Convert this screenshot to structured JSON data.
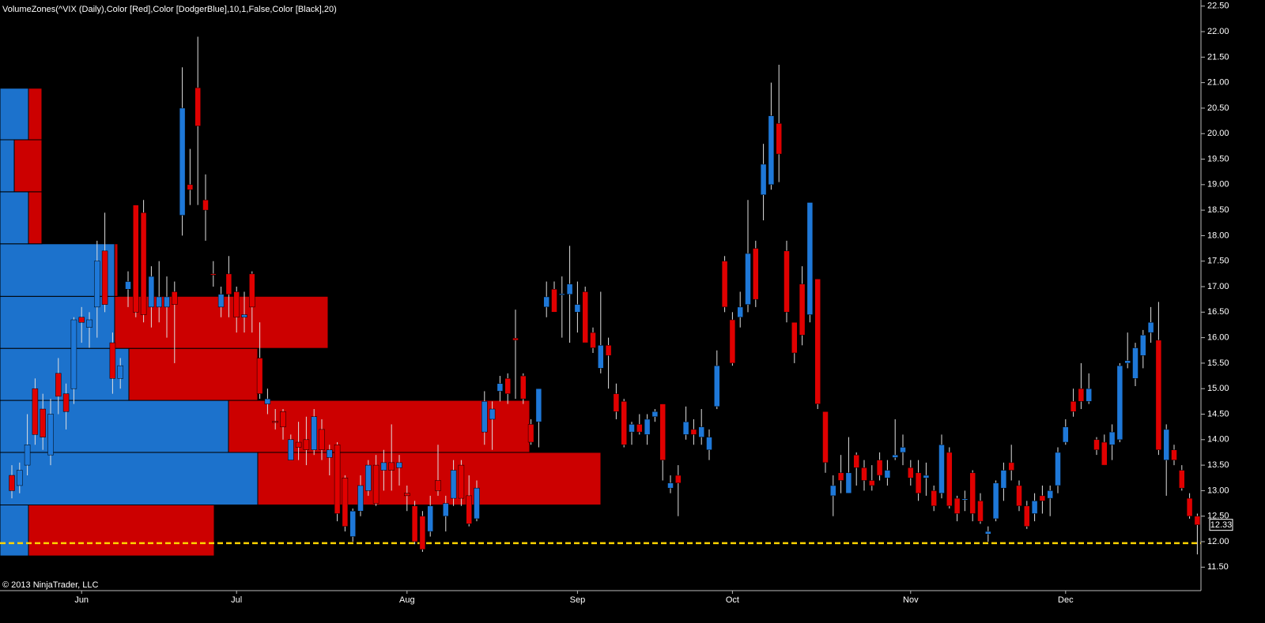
{
  "chart_data": {
    "type": "candlestick",
    "title": "VolumeZones(^VIX (Daily),Color [Red],Color [DodgerBlue],10,1,False,Color [Black],20)",
    "copyright": "© 2013 NinjaTrader, LLC",
    "up_color": "#1e78d8",
    "down_color": "#e00000",
    "wick_color": "#e0e0e0",
    "zone_up_color": "#1c72cc",
    "zone_down_color": "#cc0000",
    "support_line": {
      "value": 11.97,
      "color": "#ffd200"
    },
    "categories": [
      null,
      null,
      null,
      null,
      null,
      null,
      null,
      null,
      null,
      "Jun",
      null,
      null,
      null,
      null,
      null,
      null,
      null,
      null,
      null,
      null,
      null,
      null,
      null,
      null,
      null,
      null,
      null,
      null,
      null,
      "Jul",
      null,
      null,
      null,
      null,
      null,
      null,
      null,
      null,
      null,
      null,
      null,
      null,
      null,
      null,
      null,
      null,
      null,
      null,
      null,
      null,
      null,
      "Aug",
      null,
      null,
      null,
      null,
      null,
      null,
      null,
      null,
      null,
      null,
      null,
      null,
      null,
      null,
      null,
      null,
      null,
      null,
      null,
      null,
      null,
      "Sep",
      null,
      null,
      null,
      null,
      null,
      null,
      null,
      null,
      null,
      null,
      null,
      null,
      null,
      null,
      null,
      null,
      null,
      null,
      null,
      "Oct",
      null,
      null,
      null,
      null,
      null,
      null,
      null,
      null,
      null,
      null,
      null,
      null,
      null,
      null,
      null,
      null,
      null,
      null,
      null,
      null,
      null,
      null,
      "Nov",
      null,
      null,
      null,
      null,
      null,
      null,
      null,
      null,
      null,
      null,
      null,
      null,
      null,
      null,
      null,
      null,
      null,
      null,
      null,
      "Dec",
      null,
      null,
      null,
      null,
      null,
      null,
      null,
      null,
      null,
      null,
      null,
      null,
      null,
      null,
      null,
      null,
      null
    ],
    "ohlc": [
      [
        13.3,
        13.5,
        12.85,
        13.0
      ],
      [
        13.1,
        13.55,
        12.95,
        13.4
      ],
      [
        13.5,
        14.5,
        13.3,
        13.9
      ],
      [
        15.0,
        15.2,
        13.9,
        14.1
      ],
      [
        14.6,
        14.9,
        13.8,
        14.05
      ],
      [
        13.7,
        14.8,
        13.5,
        14.5
      ],
      [
        15.3,
        15.6,
        14.5,
        14.85
      ],
      [
        14.9,
        15.1,
        14.2,
        14.55
      ],
      [
        15.0,
        16.4,
        14.7,
        16.35
      ],
      [
        16.4,
        16.6,
        15.9,
        16.3
      ],
      [
        16.2,
        16.5,
        15.8,
        16.35
      ],
      [
        16.6,
        17.9,
        16.0,
        17.5
      ],
      [
        17.7,
        18.45,
        16.5,
        16.65
      ],
      [
        15.9,
        16.1,
        14.9,
        15.2
      ],
      [
        15.2,
        15.6,
        15.0,
        15.45
      ],
      [
        16.95,
        17.3,
        16.6,
        17.1
      ],
      [
        18.6,
        18.6,
        16.4,
        16.5
      ],
      [
        18.45,
        18.7,
        16.3,
        16.45
      ],
      [
        16.6,
        17.4,
        16.2,
        17.2
      ],
      [
        16.6,
        17.5,
        16.3,
        16.8
      ],
      [
        16.6,
        17.2,
        16.0,
        16.8
      ],
      [
        16.9,
        17.1,
        15.5,
        16.65
      ],
      [
        18.4,
        21.3,
        18.0,
        20.5
      ],
      [
        19.0,
        19.7,
        18.6,
        18.9
      ],
      [
        20.9,
        21.9,
        18.6,
        20.15
      ],
      [
        18.7,
        19.2,
        17.9,
        18.5
      ],
      [
        17.25,
        17.5,
        17.0,
        17.24
      ],
      [
        16.6,
        17.0,
        16.4,
        16.85
      ],
      [
        17.25,
        17.6,
        16.4,
        16.85
      ],
      [
        16.9,
        17.0,
        16.1,
        16.4
      ],
      [
        16.4,
        16.9,
        16.1,
        16.45
      ],
      [
        17.25,
        17.3,
        16.1,
        16.6
      ],
      [
        15.6,
        16.3,
        14.8,
        14.9
      ],
      [
        14.7,
        15.0,
        14.5,
        14.8
      ],
      [
        14.36,
        14.6,
        14.2,
        14.35
      ],
      [
        14.55,
        14.6,
        14.0,
        14.25
      ],
      [
        13.6,
        14.1,
        13.6,
        14.0
      ],
      [
        13.95,
        14.35,
        13.6,
        13.85
      ],
      [
        14.0,
        14.45,
        13.5,
        13.8
      ],
      [
        13.8,
        14.6,
        13.7,
        14.45
      ],
      [
        14.2,
        14.4,
        13.6,
        13.8
      ],
      [
        13.65,
        13.9,
        13.3,
        13.8
      ],
      [
        13.9,
        13.95,
        12.4,
        12.55
      ],
      [
        13.25,
        13.3,
        12.2,
        12.3
      ],
      [
        12.1,
        12.65,
        12.0,
        12.6
      ],
      [
        12.6,
        13.3,
        12.5,
        13.1
      ],
      [
        13.0,
        13.6,
        12.9,
        13.5
      ],
      [
        13.5,
        13.7,
        12.7,
        12.75
      ],
      [
        13.4,
        13.8,
        13.0,
        13.55
      ],
      [
        13.55,
        14.3,
        13.0,
        13.4
      ],
      [
        13.45,
        13.7,
        13.1,
        13.55
      ],
      [
        12.95,
        13.1,
        12.6,
        12.9
      ],
      [
        12.7,
        12.8,
        11.95,
        12.0
      ],
      [
        12.5,
        12.6,
        11.8,
        11.85
      ],
      [
        12.2,
        12.9,
        12.1,
        12.7
      ],
      [
        13.2,
        13.9,
        12.9,
        13.0
      ],
      [
        12.5,
        12.9,
        12.2,
        12.75
      ],
      [
        12.85,
        13.6,
        12.7,
        13.4
      ],
      [
        13.5,
        13.6,
        12.7,
        12.85
      ],
      [
        12.9,
        13.3,
        12.3,
        12.35
      ],
      [
        12.45,
        13.2,
        12.4,
        13.05
      ],
      [
        14.15,
        14.95,
        13.9,
        14.75
      ],
      [
        14.4,
        14.75,
        13.8,
        14.6
      ],
      [
        14.95,
        15.25,
        14.75,
        15.1
      ],
      [
        15.2,
        15.3,
        14.7,
        14.9
      ],
      [
        15.99,
        16.55,
        14.8,
        15.95
      ],
      [
        15.25,
        15.3,
        14.7,
        14.8
      ],
      [
        14.3,
        14.4,
        13.9,
        13.95
      ],
      [
        14.35,
        15.0,
        13.85,
        15.0
      ],
      [
        16.6,
        17.1,
        16.4,
        16.8
      ],
      [
        16.95,
        17.1,
        16.5,
        16.5
      ],
      [
        16.85,
        17.2,
        16.0,
        16.86
      ],
      [
        16.85,
        17.8,
        15.9,
        17.05
      ],
      [
        16.5,
        17.1,
        16.1,
        16.65
      ],
      [
        16.9,
        17.0,
        15.9,
        15.9
      ],
      [
        16.1,
        16.2,
        15.7,
        15.8
      ],
      [
        15.4,
        16.9,
        15.3,
        15.85
      ],
      [
        15.85,
        16.0,
        15.0,
        15.65
      ],
      [
        14.9,
        15.1,
        14.4,
        14.55
      ],
      [
        14.75,
        14.8,
        13.85,
        13.9
      ],
      [
        14.15,
        14.35,
        13.9,
        14.3
      ],
      [
        14.3,
        14.5,
        14.1,
        14.15
      ],
      [
        14.1,
        14.5,
        13.9,
        14.4
      ],
      [
        14.45,
        14.6,
        14.35,
        14.55
      ],
      [
        14.7,
        14.7,
        13.2,
        13.6
      ],
      [
        13.05,
        13.3,
        12.95,
        13.15
      ],
      [
        13.3,
        13.5,
        12.5,
        13.15
      ],
      [
        14.1,
        14.65,
        14.0,
        14.35
      ],
      [
        14.2,
        14.4,
        13.9,
        14.1
      ],
      [
        14.05,
        14.6,
        13.9,
        14.25
      ],
      [
        13.8,
        14.2,
        13.6,
        14.05
      ],
      [
        14.65,
        15.75,
        14.6,
        15.45
      ],
      [
        17.5,
        17.6,
        16.5,
        16.6
      ],
      [
        16.35,
        16.5,
        15.45,
        15.5
      ],
      [
        16.4,
        16.9,
        16.2,
        16.6
      ],
      [
        16.65,
        18.7,
        16.5,
        17.65
      ],
      [
        17.75,
        17.9,
        16.6,
        16.75
      ],
      [
        18.8,
        19.8,
        18.3,
        19.4
      ],
      [
        19.0,
        21.0,
        18.9,
        20.35
      ],
      [
        20.2,
        21.35,
        19.05,
        19.6
      ],
      [
        17.7,
        17.9,
        16.3,
        16.5
      ],
      [
        16.3,
        16.3,
        15.5,
        15.7
      ],
      [
        17.05,
        17.4,
        15.85,
        16.05
      ],
      [
        16.45,
        18.65,
        16.3,
        18.65
      ],
      [
        17.15,
        17.15,
        14.6,
        14.7
      ],
      [
        14.55,
        14.55,
        13.35,
        13.55
      ],
      [
        12.9,
        13.3,
        12.5,
        13.1
      ],
      [
        13.35,
        13.7,
        12.95,
        13.2
      ],
      [
        12.95,
        14.05,
        12.95,
        13.35
      ],
      [
        13.7,
        13.75,
        13.1,
        13.45
      ],
      [
        13.45,
        13.6,
        13.0,
        13.2
      ],
      [
        13.2,
        13.5,
        13.0,
        13.1
      ],
      [
        13.6,
        13.75,
        13.2,
        13.3
      ],
      [
        13.25,
        13.6,
        13.1,
        13.4
      ],
      [
        13.65,
        14.4,
        13.6,
        13.7
      ],
      [
        13.75,
        14.1,
        13.5,
        13.85
      ],
      [
        13.45,
        13.6,
        13.1,
        13.25
      ],
      [
        13.35,
        13.6,
        12.8,
        12.95
      ],
      [
        13.25,
        13.55,
        12.9,
        13.3
      ],
      [
        13.0,
        13.1,
        12.6,
        12.7
      ],
      [
        12.95,
        14.1,
        12.85,
        13.9
      ],
      [
        13.75,
        13.85,
        12.65,
        12.7
      ],
      [
        12.85,
        12.9,
        12.4,
        12.55
      ],
      [
        12.83,
        13.0,
        12.6,
        12.84
      ],
      [
        13.35,
        13.4,
        12.4,
        12.55
      ],
      [
        12.8,
        12.95,
        12.35,
        12.4
      ],
      [
        12.15,
        12.3,
        12.0,
        12.2
      ],
      [
        12.45,
        13.2,
        12.4,
        13.15
      ],
      [
        13.05,
        13.55,
        12.8,
        13.4
      ],
      [
        13.55,
        13.9,
        13.2,
        13.4
      ],
      [
        13.1,
        13.2,
        12.6,
        12.7
      ],
      [
        12.7,
        12.8,
        12.25,
        12.3
      ],
      [
        12.55,
        12.95,
        12.4,
        12.8
      ],
      [
        12.9,
        13.1,
        12.55,
        12.8
      ],
      [
        12.85,
        13.1,
        12.5,
        13.0
      ],
      [
        13.1,
        13.85,
        12.95,
        13.75
      ],
      [
        13.95,
        14.4,
        13.9,
        14.25
      ],
      [
        14.75,
        15.0,
        14.45,
        14.55
      ],
      [
        15.0,
        15.5,
        14.6,
        14.75
      ],
      [
        14.75,
        15.3,
        14.7,
        15.0
      ],
      [
        14.0,
        14.05,
        13.7,
        13.8
      ],
      [
        13.95,
        14.1,
        13.5,
        13.5
      ],
      [
        13.9,
        14.3,
        13.6,
        14.15
      ],
      [
        14.0,
        15.5,
        13.95,
        15.45
      ],
      [
        15.5,
        16.1,
        15.4,
        15.55
      ],
      [
        15.2,
        15.9,
        15.05,
        15.8
      ],
      [
        15.65,
        16.15,
        15.4,
        16.05
      ],
      [
        16.1,
        16.6,
        15.9,
        16.3
      ],
      [
        15.95,
        16.7,
        13.7,
        13.8
      ],
      [
        13.6,
        14.3,
        12.9,
        14.2
      ],
      [
        13.8,
        13.9,
        13.5,
        13.6
      ],
      [
        13.4,
        13.5,
        13.0,
        13.05
      ],
      [
        12.85,
        12.95,
        12.45,
        12.5
      ],
      [
        12.5,
        12.55,
        11.75,
        12.33
      ]
    ],
    "volume_zones": [
      {
        "low": 11.72,
        "high": 12.72,
        "up": 36,
        "down": 235
      },
      {
        "low": 12.72,
        "high": 13.75,
        "up": 326,
        "down": 434
      },
      {
        "low": 13.75,
        "high": 14.77,
        "up": 289,
        "down": 381
      },
      {
        "low": 14.77,
        "high": 15.79,
        "up": 163,
        "down": 163
      },
      {
        "low": 15.79,
        "high": 16.81,
        "up": 145,
        "down": 270
      },
      {
        "low": 16.81,
        "high": 17.84,
        "up": 145,
        "down": 4
      },
      {
        "low": 17.84,
        "high": 18.86,
        "up": 36,
        "down": 17
      },
      {
        "low": 18.86,
        "high": 19.88,
        "up": 18,
        "down": 35
      },
      {
        "low": 19.88,
        "high": 20.89,
        "up": 36,
        "down": 17
      }
    ],
    "ylim": [
      11.04,
      22.62
    ],
    "yticks": [
      {
        "value": 11.5,
        "label": "11.50"
      },
      {
        "value": 12,
        "label": "12.00"
      },
      {
        "value": 12.5,
        "label": "12.50"
      },
      {
        "value": 13,
        "label": "13.00"
      },
      {
        "value": 13.5,
        "label": "13.50"
      },
      {
        "value": 14,
        "label": "14.00"
      },
      {
        "value": 14.5,
        "label": "14.50"
      },
      {
        "value": 15,
        "label": "15.00"
      },
      {
        "value": 15.5,
        "label": "15.50"
      },
      {
        "value": 16,
        "label": "16.00"
      },
      {
        "value": 16.5,
        "label": "16.50"
      },
      {
        "value": 17,
        "label": "17.00"
      },
      {
        "value": 17.5,
        "label": "17.50"
      },
      {
        "value": 18,
        "label": "18.00"
      },
      {
        "value": 18.5,
        "label": "18.50"
      },
      {
        "value": 19,
        "label": "19.00"
      },
      {
        "value": 19.5,
        "label": "19.50"
      },
      {
        "value": 20,
        "label": "20.00"
      },
      {
        "value": 20.5,
        "label": "20.50"
      },
      {
        "value": 21,
        "label": "21.00"
      },
      {
        "value": 21.5,
        "label": "21.50"
      },
      {
        "value": 22,
        "label": "22.00"
      },
      {
        "value": 22.5,
        "label": "22.50"
      }
    ]
  }
}
